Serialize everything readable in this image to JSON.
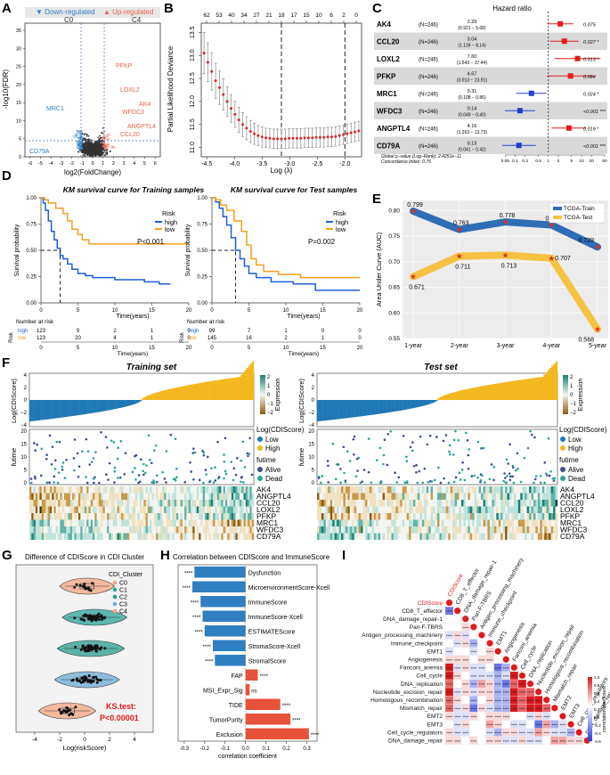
{
  "colors": {
    "down": "#2f7fc1",
    "up": "#e8604c",
    "grey": "#333333",
    "high": "#1f5fd6",
    "low": "#f0a21c",
    "train": "#2f6db5",
    "test": "#f5c242",
    "alive": "#3d4f8f",
    "dead": "#2aa39a",
    "lowScore": "#1f78b4",
    "highScore": "#f2b81e",
    "red": "#d62728"
  },
  "A": {
    "label": "A",
    "legend_down": "Down-regulated",
    "legend_c0": "C0",
    "legend_up": "Up-regulated",
    "legend_c4": "C4",
    "xlabel": "log2(FoldChange)",
    "ylabel": "-log10(FDR)",
    "xticks": [
      "-6",
      "-5",
      "-4",
      "-3",
      "-2",
      "-1",
      "0",
      "1",
      "2",
      "3",
      "4",
      "5",
      "6"
    ],
    "yticks": [
      "0",
      "5",
      "10",
      "15",
      "20",
      "25",
      "30",
      "35"
    ],
    "genes_up": [
      "PFKP",
      "LOXL2",
      "AK4",
      "WFDC3",
      "ANGPTL4",
      "CCL20"
    ],
    "genes_down": [
      "MRC1",
      "CD79A"
    ]
  },
  "B": {
    "label": "B",
    "top_ticks": [
      "62",
      "53",
      "40",
      "34",
      "27",
      "21",
      "18",
      "17",
      "15",
      "10",
      "6",
      "2",
      "0"
    ],
    "xticks": [
      "-4.5",
      "-4.0",
      "-3.5",
      "-3.0",
      "-2.5",
      "-2.0"
    ],
    "yticks": [
      "11.0",
      "11.5",
      "12.0",
      "12.5",
      "13.0",
      "13.5"
    ],
    "xlabel": "Log (λ)",
    "ylabel": "Partial Likelihood Deviance",
    "chart_data": {
      "type": "scatter",
      "x": [
        -4.55,
        -4.48,
        -4.41,
        -4.34,
        -4.27,
        -4.2,
        -4.13,
        -4.06,
        -3.99,
        -3.92,
        -3.85,
        -3.78,
        -3.71,
        -3.64,
        -3.57,
        -3.5,
        -3.43,
        -3.36,
        -3.29,
        -3.22,
        -3.15,
        -3.08,
        -3.01,
        -2.94,
        -2.87,
        -2.8,
        -2.73,
        -2.66,
        -2.59,
        -2.52,
        -2.45,
        -2.38,
        -2.31,
        -2.24,
        -2.17,
        -2.1,
        -2.03,
        -1.96,
        -1.89,
        -1.82,
        -1.75
      ],
      "y": [
        13.05,
        12.85,
        12.65,
        12.45,
        12.3,
        12.15,
        12.0,
        11.85,
        11.72,
        11.6,
        11.5,
        11.42,
        11.35,
        11.3,
        11.26,
        11.23,
        11.21,
        11.2,
        11.19,
        11.19,
        11.19,
        11.19,
        11.2,
        11.2,
        11.2,
        11.2,
        11.21,
        11.21,
        11.21,
        11.22,
        11.22,
        11.22,
        11.23,
        11.23,
        11.24,
        11.26,
        11.28,
        11.3,
        11.32,
        11.34,
        11.36
      ],
      "err": [
        0.45,
        0.42,
        0.4,
        0.38,
        0.36,
        0.34,
        0.32,
        0.3,
        0.28,
        0.27,
        0.26,
        0.25,
        0.24,
        0.23,
        0.22,
        0.22,
        0.21,
        0.21,
        0.21,
        0.21,
        0.21,
        0.21,
        0.21,
        0.21,
        0.21,
        0.21,
        0.21,
        0.21,
        0.21,
        0.21,
        0.21,
        0.21,
        0.21,
        0.21,
        0.21,
        0.21,
        0.21,
        0.21,
        0.21,
        0.21,
        0.21
      ],
      "vlines": [
        -3.15,
        -2.0
      ],
      "xlim": [
        -4.6,
        -1.7
      ],
      "ylim": [
        10.8,
        13.7
      ]
    }
  },
  "C": {
    "label": "C",
    "title": "Hazard ratio",
    "rows": [
      {
        "gene": "AK4",
        "n": "(N=246)",
        "hr": "2.29",
        "ci": "(0.921 − 5.68)",
        "p": "0.075",
        "hrv": 2.29,
        "lo": 0.921,
        "hi": 5.68
      },
      {
        "gene": "CCL20",
        "n": "(N=246)",
        "hr": "3.04",
        "ci": "(1.139 − 8.14)",
        "p": "0.027 *",
        "hrv": 3.04,
        "lo": 1.139,
        "hi": 8.14
      },
      {
        "gene": "LOXL2",
        "n": "(N=246)",
        "hr": "7.60",
        "ci": "(1.543 − 37.44)",
        "p": "0.013 *",
        "hrv": 7.6,
        "lo": 1.543,
        "hi": 37.44
      },
      {
        "gene": "PFKP",
        "n": "(N=246)",
        "hr": "4.67",
        "ci": "(0.913 − 23.91)",
        "p": "0.064",
        "hrv": 4.67,
        "lo": 0.913,
        "hi": 23.91
      },
      {
        "gene": "MRC1",
        "n": "(N=246)",
        "hr": "0.31",
        "ci": "(0.108 − 0.86)",
        "p": "0.024 *",
        "hrv": 0.31,
        "lo": 0.108,
        "hi": 0.86
      },
      {
        "gene": "WFDC3",
        "n": "(N=246)",
        "hr": "0.14",
        "ci": "(0.049 − 0.40)",
        "p": "<0.001 ***",
        "hrv": 0.14,
        "lo": 0.049,
        "hi": 0.4
      },
      {
        "gene": "ANGPTL4",
        "n": "(N=246)",
        "hr": "4.16",
        "ci": "(1.263 − 13.73)",
        "p": "0.019 *",
        "hrv": 4.16,
        "lo": 1.263,
        "hi": 13.73
      },
      {
        "gene": "CD79A",
        "n": "(N=246)",
        "hr": "0.13",
        "ci": "(0.041 − 0.42)",
        "p": "<0.001 ***",
        "hrv": 0.13,
        "lo": 0.041,
        "hi": 0.42
      }
    ],
    "foot1": "Global p−value (Log−Rank): 2.4251e−11",
    "foot2": "Concordance Index: 0.75",
    "xticks": [
      "0.05",
      "0.1",
      "0.2",
      "0.5",
      "1",
      "2",
      "5",
      "10",
      "20",
      "50"
    ]
  },
  "D": {
    "label": "D",
    "title_train": "KM survival curve for Training samples",
    "title_test": "KM survival curve for Test samples",
    "p_train": "P<0.001",
    "p_test": "P=0.002",
    "legend_title": "Risk",
    "legend_high": "high",
    "legend_low": "low",
    "xlabel": "Time(years)",
    "ylabel": "Survival probability",
    "yticks": [
      "0.00",
      "0.25",
      "0.50",
      "0.75",
      "1.00"
    ],
    "xticks": [
      "0",
      "5",
      "10",
      "15",
      "20"
    ],
    "nrisk_title": "Number at risk",
    "risk_label": "Risk",
    "train_high": [
      "123",
      "9",
      "2",
      "1",
      "0"
    ],
    "train_low": [
      "123",
      "20",
      "4",
      "1",
      "0"
    ],
    "test_high": [
      "99",
      "7",
      "1",
      "0",
      "0"
    ],
    "test_low": [
      "145",
      "16",
      "2",
      "1",
      "0"
    ]
  },
  "E": {
    "label": "E",
    "ylabel": "Area Under Curve (AUC)",
    "legend_train": "TCGA-Train",
    "legend_test": "TCGA-Test",
    "yticks": [
      "0.55",
      "0.60",
      "0.65",
      "0.70",
      "0.75",
      "0.80"
    ],
    "chart_data": {
      "type": "line",
      "categories": [
        "1-year",
        "2-year",
        "3-year",
        "4-year",
        "5-year"
      ],
      "series": [
        {
          "name": "TCGA-Train",
          "values": [
            0.799,
            0.763,
            0.778,
            0.772,
            0.729
          ]
        },
        {
          "name": "TCGA-Test",
          "values": [
            0.671,
            0.711,
            0.713,
            0.707,
            0.568
          ]
        }
      ],
      "value_labels_train": [
        "0.799",
        "0.763",
        "0.778",
        "0.772",
        "0.729"
      ],
      "value_labels_test": [
        "0.671",
        "0.711",
        "0.713",
        "0.707",
        "0.568"
      ],
      "ylim": [
        0.55,
        0.82
      ]
    }
  },
  "F": {
    "label": "F",
    "title_train": "Training set",
    "title_test": "Test set",
    "ylab_score": "Log(CDIScore)",
    "ylab_fut": "futime",
    "expr_title": "Expression",
    "logtitle": "Log(CDIScore)",
    "low": "Low",
    "high": "High",
    "alive": "Alive",
    "dead": "Dead",
    "genes": [
      "AK4",
      "ANGPTL4",
      "CCL20",
      "LOXL2",
      "PFKP",
      "MRC1",
      "WFDC3",
      "CD79A"
    ],
    "yticks_score": [
      "4",
      "2",
      "0",
      "−2",
      "−4"
    ],
    "yticks_fut": [
      "20",
      "15",
      "10",
      "5",
      "0"
    ],
    "expr_ticks": [
      "2",
      "1",
      "0",
      "−1",
      "−2"
    ]
  },
  "G": {
    "label": "G",
    "title": "Difference of CDIScore in CDI Cluster",
    "legend_title": "CDI_Cluster",
    "clusters": [
      "C0",
      "C1",
      "C2",
      "C3",
      "C4"
    ],
    "cluster_colors": [
      "#f4a582",
      "#2aa39a",
      "#2a9d8f",
      "#6baed6",
      "#f4a582"
    ],
    "xlabel": "Log(riskScore)",
    "xticks": [
      "-4",
      "-2",
      "0",
      "2",
      "4"
    ],
    "ks1": "KS.test:",
    "ks2": "P<0.00001"
  },
  "H": {
    "label": "H",
    "title": "Correlation between CDIScore and ImmuneScore",
    "xlabel": "correlation coefficient",
    "xticks": [
      "-0.3",
      "-0.2",
      "-0.1",
      "0.0",
      "0.1",
      "0.2",
      "0.3"
    ],
    "chart_data": {
      "type": "bar",
      "categories": [
        "Dysfunction",
        "MicroenvironmentScore-Xcell",
        "ImmuneScore",
        "ImmuneScore-Xcell",
        "ESTIMATEScore",
        "StromaScore-Xcell",
        "StromalScore",
        "FAP",
        "MSI_Expr_Sig",
        "TIDE",
        "TumorPurity",
        "Exclusion"
      ],
      "values": [
        -0.25,
        -0.26,
        -0.22,
        -0.21,
        -0.2,
        -0.16,
        -0.15,
        0.06,
        0.02,
        0.17,
        0.22,
        0.31
      ],
      "signif": [
        "****",
        "****",
        "****",
        "****",
        "****",
        "****",
        "****",
        "****",
        "ns",
        "****",
        "****",
        "****"
      ],
      "xlim": [
        -0.33,
        0.35
      ]
    }
  },
  "I": {
    "label": "I",
    "labels": [
      "CDIScore",
      "CD8_T_effector",
      "DNA_damage_repair-1",
      "Pan-F-TBRS",
      "Antigen_processing_machinery",
      "Immune_checkpoint",
      "EMT1",
      "Angiogenesis",
      "Fanconi_anemia",
      "Cell_cycle",
      "DNA_replication",
      "Nucleotide_excision_repair",
      "Homologous_recombination",
      "Mismatch_repair",
      "EMT2",
      "EMT3",
      "Cell_cycle_regulators",
      "DNA_damage_repair"
    ],
    "cbar_ticks": [
      "1.0",
      "0.8",
      "0.6",
      "0.4",
      "0.2",
      "0.0",
      "-0.2",
      "-0.4",
      "-0.6"
    ],
    "cbar_title": "correlation coefficient"
  }
}
